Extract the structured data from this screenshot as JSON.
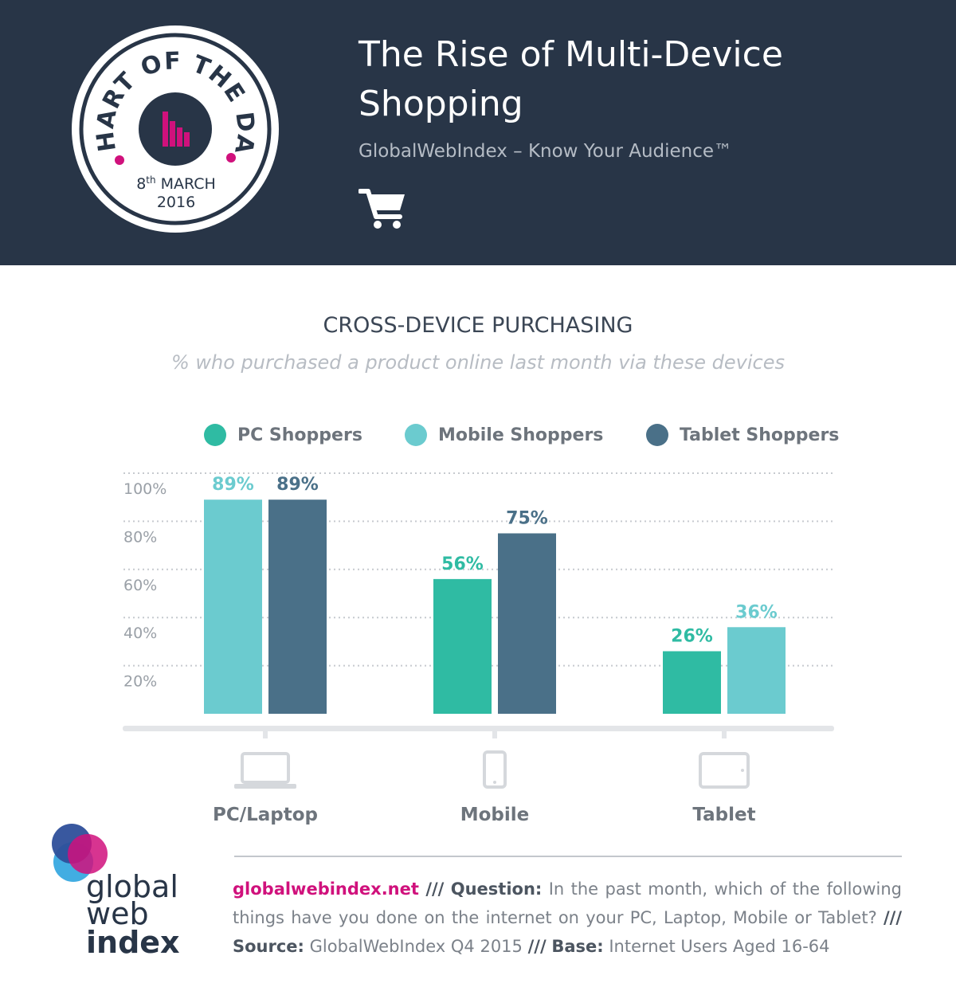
{
  "header": {
    "title": "The Rise of Multi-Device Shopping",
    "subtitle": "GlobalWebIndex – Know Your Audience™",
    "badge": {
      "top_text": "CHART OF THE DAY",
      "day": "8",
      "day_suffix": "th",
      "month": "MARCH",
      "year": "2016"
    },
    "cart_icon": "shopping-cart-icon"
  },
  "chart_data": {
    "type": "bar",
    "title": "CROSS-DEVICE PURCHASING",
    "subtitle": "% who purchased a product online last month via these devices",
    "categories": [
      "PC/Laptop",
      "Mobile",
      "Tablet"
    ],
    "category_icons": [
      "laptop-icon",
      "mobile-phone-icon",
      "tablet-icon"
    ],
    "series": [
      {
        "name": "PC Shoppers",
        "color": "#2fbba3",
        "values": [
          null,
          56,
          26
        ],
        "labels": [
          "",
          "56%",
          "26%"
        ]
      },
      {
        "name": "Mobile Shoppers",
        "color": "#6bcbcf",
        "values": [
          89,
          null,
          36
        ],
        "labels": [
          "89%",
          "",
          "36%"
        ]
      },
      {
        "name": "Tablet Shoppers",
        "color": "#4a7088",
        "values": [
          89,
          75,
          null
        ],
        "labels": [
          "89%",
          "75%",
          ""
        ]
      }
    ],
    "ylim": [
      0,
      100
    ],
    "yticks": [
      20,
      40,
      60,
      80,
      100
    ],
    "ytick_labels": [
      "20%",
      "40%",
      "60%",
      "80%",
      "100%"
    ],
    "grid": true,
    "legend": "top"
  },
  "footer": {
    "url": "globalwebindex.net",
    "sep": "///",
    "question_label": "Question:",
    "question": "In the past month, which of the following things have you done on the internet on your PC, Laptop, Mobile or Tablet?",
    "source_label": "Source:",
    "source": "GlobalWebIndex Q4 2015",
    "base_label": "Base:",
    "base": "Internet Users Aged 16-64"
  },
  "logo": {
    "line1": "global",
    "line2": "web",
    "line3": "index"
  }
}
